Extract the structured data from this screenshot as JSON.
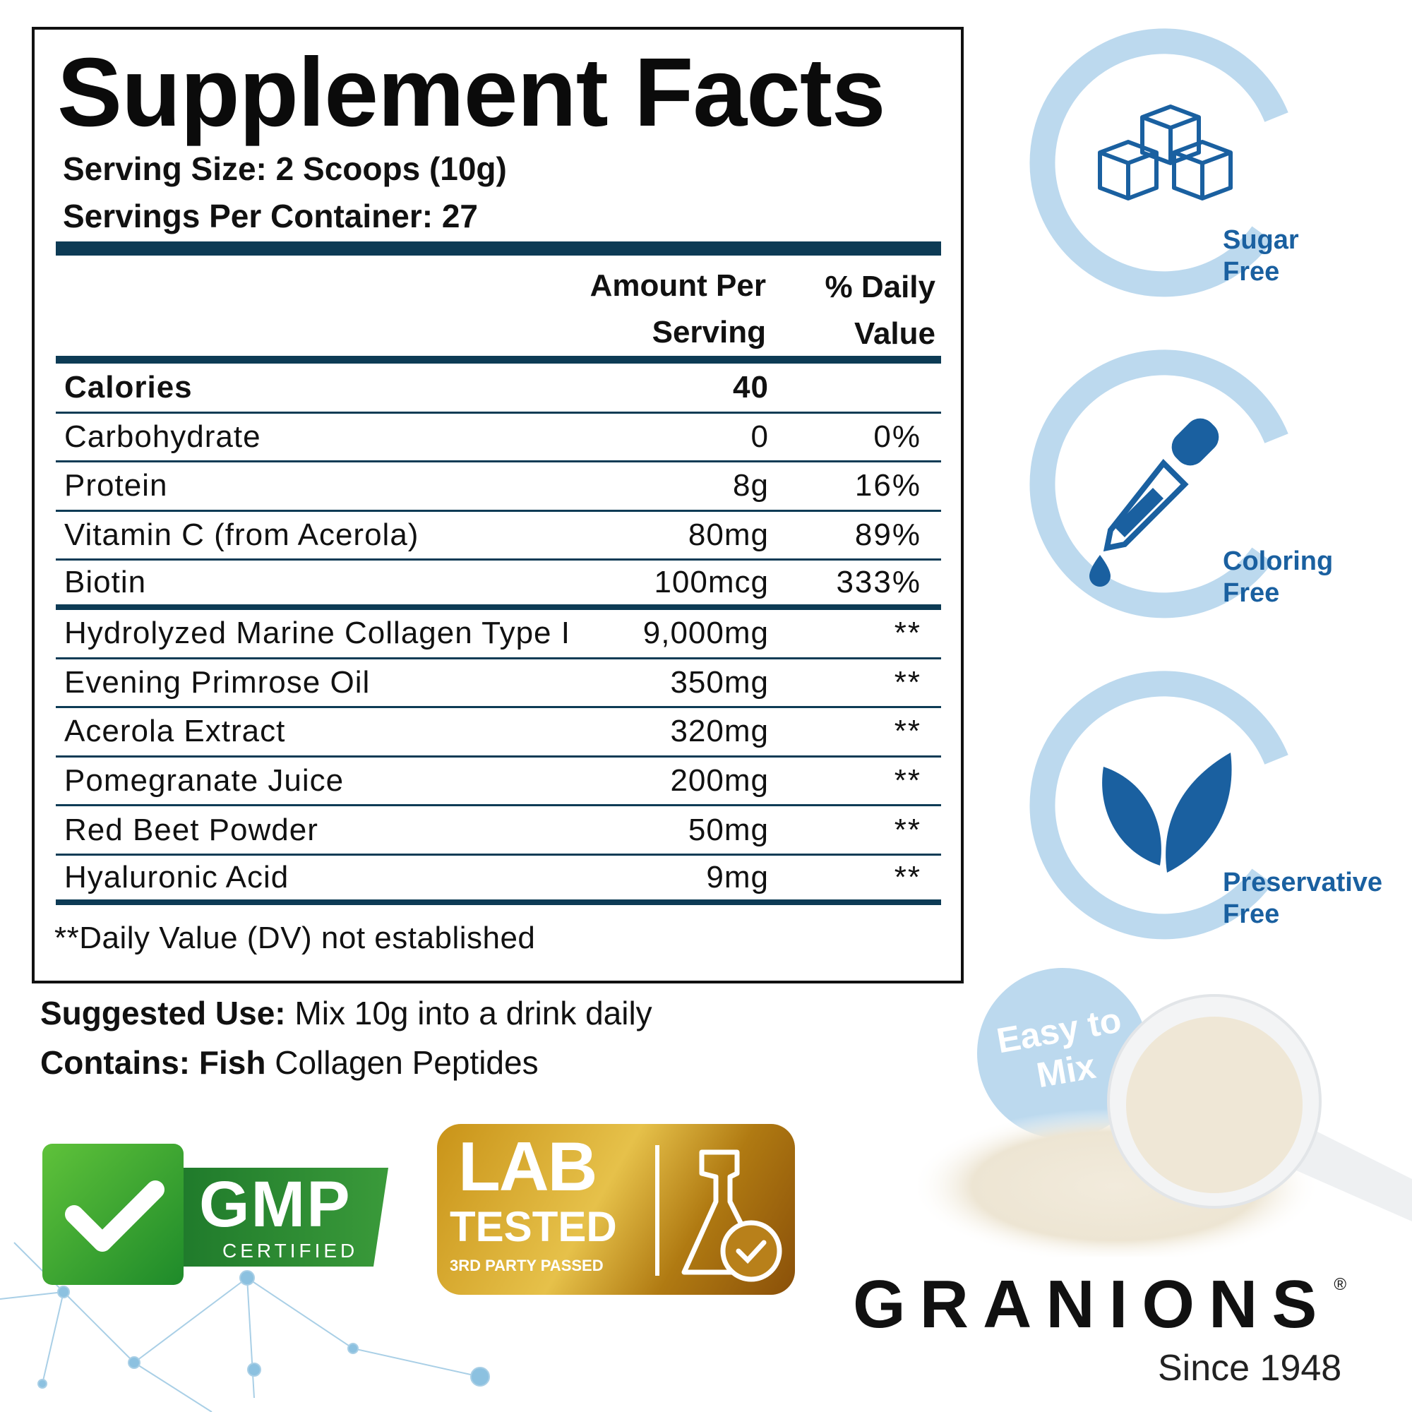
{
  "facts": {
    "title": "Supplement Facts",
    "serving_size": "Serving Size: 2 Scoops (10g)",
    "servings_per_container": "Servings Per Container: 27",
    "header_amount_1": "Amount Per",
    "header_amount_2": "Serving",
    "header_dv_1": "% Daily",
    "header_dv_2": "Value",
    "rows": [
      {
        "label": "Calories",
        "amount": "40",
        "dv": ""
      },
      {
        "label": "Carbohydrate",
        "amount": "0",
        "dv": "0%"
      },
      {
        "label": "Protein",
        "amount": "8g",
        "dv": "16%"
      },
      {
        "label": "Vitamin C (from Acerola)",
        "amount": "80mg",
        "dv": "89%"
      },
      {
        "label": "Biotin",
        "amount": "100mcg",
        "dv": "333%"
      },
      {
        "label": "Hydrolyzed Marine Collagen Type I",
        "amount": "9,000mg",
        "dv": "**"
      },
      {
        "label": "Evening Primrose Oil",
        "amount": "350mg",
        "dv": "**"
      },
      {
        "label": "Acerola Extract",
        "amount": "320mg",
        "dv": "**"
      },
      {
        "label": "Pomegranate Juice",
        "amount": "200mg",
        "dv": "**"
      },
      {
        "label": "Red Beet Powder",
        "amount": "50mg",
        "dv": "**"
      },
      {
        "label": "Hyaluronic Acid",
        "amount": "9mg",
        "dv": "**"
      }
    ],
    "footnote": "**Daily Value (DV) not established"
  },
  "usage": {
    "suggested_label": "Suggested Use:",
    "suggested_text": " Mix 10g into a drink daily",
    "contains_label": "Contains: Fish",
    "contains_text": " Collagen Peptides"
  },
  "features": [
    {
      "icon": "sugar-cubes-icon",
      "line1": "Sugar",
      "line2": "Free"
    },
    {
      "icon": "dropper-icon",
      "line1": "Coloring",
      "line2": "Free"
    },
    {
      "icon": "leaves-icon",
      "line1": "Preservative",
      "line2": "Free"
    }
  ],
  "easy_mix": {
    "line1": "Easy to",
    "line2": "Mix"
  },
  "gmp": {
    "title": "GMP",
    "subtitle": "CERTIFIED"
  },
  "lab": {
    "line1": "LAB",
    "line2": "TESTED",
    "line3": "3RD PARTY PASSED"
  },
  "brand": {
    "name": "GRANIONS",
    "tagline": "Since 1948"
  },
  "colors": {
    "navy": "#0d3b55",
    "feature_blue": "#1a60a0",
    "ring": "#bcd9ee",
    "gmp_green": "#2e8b2e",
    "gold": "#c9961a"
  }
}
